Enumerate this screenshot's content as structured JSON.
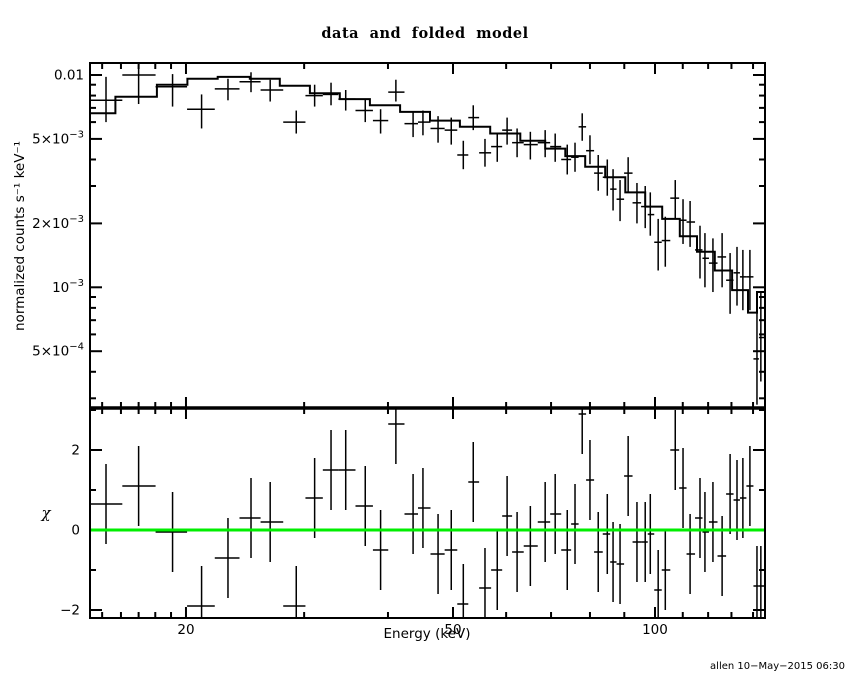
{
  "title": "data and folded model",
  "xlabel": "Energy (keV)",
  "ylabel_top": "normalized counts s⁻¹ keV⁻¹",
  "ylabel_bottom": "χ",
  "timestamp": "allen 10−May−2015 06:30",
  "colors": {
    "foreground": "#000000",
    "background": "#ffffff",
    "model_line": "#000000",
    "data_line": "#000000",
    "zero_line_green": "#00ee00"
  },
  "chart_data": {
    "type": "scatter",
    "subtype": "xspec_spectrum_with_residuals",
    "title": "data and folded model",
    "x_axis": {
      "label": "Energy (keV)",
      "scale": "log",
      "range": [
        14.4,
        145.8
      ],
      "major_ticks": [
        {
          "value": 20,
          "label": "20"
        },
        {
          "value": 50,
          "label": "50"
        },
        {
          "value": 100,
          "label": "100"
        }
      ],
      "minor_ticks": [
        15,
        16,
        17,
        18,
        19,
        30,
        40,
        60,
        70,
        80,
        90,
        110,
        120,
        130,
        140
      ],
      "grid": false
    },
    "top_panel": {
      "ylabel": "normalized counts s⁻¹ keV⁻¹",
      "scale": "log",
      "ylim": [
        0.000273,
        0.0114
      ],
      "tick_labels": [
        {
          "value": 0.01,
          "label": "0.01"
        },
        {
          "value": 0.005,
          "label": "5×10^−3"
        },
        {
          "value": 0.002,
          "label": "2×10^−3"
        },
        {
          "value": 0.001,
          "label": "10^−3"
        },
        {
          "value": 0.0005,
          "label": "5×10^−4"
        }
      ],
      "minor_ticks": [
        0.009,
        0.008,
        0.007,
        0.006,
        0.004,
        0.003,
        0.0009,
        0.0008,
        0.0007,
        0.0006,
        0.0004,
        0.0003
      ],
      "model": {
        "legend": "folded model (stepped histogram)",
        "bin_edges_keV": [
          14.4,
          15.7,
          18.1,
          20.1,
          22.3,
          24.9,
          27.6,
          30.6,
          33.9,
          37.6,
          41.7,
          46.2,
          51.2,
          56.8,
          63.0,
          68.6,
          73.5,
          78.7,
          84.3,
          90.3,
          96.7,
          102.5,
          108.9,
          115.5,
          122.8,
          130.3,
          137.6,
          141.9,
          145.8
        ],
        "values": [
          0.0066,
          0.0079,
          0.009,
          0.0096,
          0.0098,
          0.0096,
          0.0089,
          0.0082,
          0.0077,
          0.0072,
          0.0067,
          0.0061,
          0.0057,
          0.0053,
          0.0049,
          0.0045,
          0.00415,
          0.0037,
          0.0033,
          0.0028,
          0.0024,
          0.0021,
          0.00174,
          0.00147,
          0.0012,
          0.00097,
          0.00076,
          0.00095
        ]
      }
    },
    "bottom_panel": {
      "ylabel": "χ",
      "scale": "linear",
      "ylim": [
        -2.2,
        3.05
      ],
      "tick_labels": [
        {
          "value": 2,
          "label": "2"
        },
        {
          "value": 0,
          "label": "0"
        },
        {
          "value": -2,
          "label": "−2"
        }
      ],
      "minor_ticks": [
        -1,
        1,
        3
      ],
      "zero_line": {
        "value": 0,
        "color": "#00ee00"
      },
      "chi_err": 1.0
    },
    "points": {
      "columns": [
        "energy_keV",
        "rate",
        "rate_err_lo",
        "rate_err_hi",
        "chi"
      ],
      "rows": [
        [
          15.2,
          0.0076,
          0.006,
          0.0098,
          0.65
        ],
        [
          17.0,
          0.01,
          0.0073,
          0.0111,
          1.1
        ],
        [
          19.1,
          0.0088,
          0.0071,
          0.0101,
          -0.05
        ],
        [
          21.1,
          0.0069,
          0.0056,
          0.0081,
          -1.9
        ],
        [
          23.1,
          0.0086,
          0.0076,
          0.0096,
          -0.7
        ],
        [
          25.0,
          0.0093,
          0.0083,
          0.0103,
          0.3
        ],
        [
          26.7,
          0.0085,
          0.0075,
          0.0095,
          0.2
        ],
        [
          29.2,
          0.006,
          0.0053,
          0.0068,
          -1.9
        ],
        [
          31.1,
          0.008,
          0.0071,
          0.009,
          0.8
        ],
        [
          32.9,
          0.0081,
          0.0072,
          0.0092,
          1.5
        ],
        [
          34.6,
          0.0077,
          0.0068,
          0.0085,
          1.5
        ],
        [
          37.0,
          0.0068,
          0.006,
          0.0077,
          0.6
        ],
        [
          39.0,
          0.0061,
          0.0053,
          0.0069,
          -0.5
        ],
        [
          41.1,
          0.0083,
          0.0075,
          0.0095,
          2.65
        ],
        [
          43.6,
          0.0059,
          0.0051,
          0.0067,
          0.4
        ],
        [
          45.1,
          0.006,
          0.0052,
          0.0068,
          0.55
        ],
        [
          47.5,
          0.0056,
          0.0048,
          0.0064,
          -0.6
        ],
        [
          49.7,
          0.0055,
          0.0047,
          0.0063,
          -0.5
        ],
        [
          51.8,
          0.0042,
          0.0036,
          0.0049,
          -1.85
        ],
        [
          53.6,
          0.0063,
          0.0055,
          0.0072,
          1.2
        ],
        [
          55.8,
          0.0043,
          0.0037,
          0.005,
          -1.45
        ],
        [
          58.2,
          0.0046,
          0.0039,
          0.0053,
          -1.0
        ],
        [
          60.2,
          0.0055,
          0.0047,
          0.0063,
          0.35
        ],
        [
          62.3,
          0.0048,
          0.0041,
          0.0056,
          -0.55
        ],
        [
          65.2,
          0.0047,
          0.004,
          0.0054,
          -0.4
        ],
        [
          68.6,
          0.0048,
          0.0041,
          0.0055,
          0.2
        ],
        [
          71.0,
          0.0046,
          0.0039,
          0.0053,
          0.4
        ],
        [
          74.0,
          0.004,
          0.0034,
          0.0047,
          -0.5
        ],
        [
          76.0,
          0.0041,
          0.0035,
          0.0048,
          0.15
        ],
        [
          77.9,
          0.0057,
          0.0049,
          0.0066,
          2.9
        ],
        [
          80.0,
          0.0044,
          0.0038,
          0.0052,
          1.25
        ],
        [
          82.3,
          0.00345,
          0.00285,
          0.0042,
          -0.55
        ],
        [
          84.9,
          0.0033,
          0.0027,
          0.004,
          -0.1
        ],
        [
          86.6,
          0.0029,
          0.0023,
          0.0036,
          -0.8
        ],
        [
          88.7,
          0.0026,
          0.00205,
          0.0032,
          -0.85
        ],
        [
          91.2,
          0.00345,
          0.0028,
          0.0041,
          1.35
        ],
        [
          94.0,
          0.0025,
          0.002,
          0.0031,
          -0.3
        ],
        [
          96.7,
          0.0024,
          0.0019,
          0.003,
          -0.3
        ],
        [
          98.4,
          0.0022,
          0.00175,
          0.0028,
          -0.1
        ],
        [
          101.1,
          0.00163,
          0.0012,
          0.0021,
          -1.5
        ],
        [
          103.6,
          0.00166,
          0.00125,
          0.00215,
          -1.0
        ],
        [
          107.2,
          0.00263,
          0.0021,
          0.0032,
          2.0
        ],
        [
          110.1,
          0.00207,
          0.0016,
          0.0026,
          1.05
        ],
        [
          112.8,
          0.00203,
          0.00155,
          0.00255,
          -0.6
        ],
        [
          116.7,
          0.0015,
          0.0011,
          0.00195,
          0.3
        ],
        [
          118.7,
          0.00137,
          0.001,
          0.0018,
          -0.05
        ],
        [
          122.0,
          0.0013,
          0.00095,
          0.0017,
          0.2
        ],
        [
          125.9,
          0.00139,
          0.001,
          0.0018,
          -0.65
        ],
        [
          129.4,
          0.00108,
          0.00075,
          0.00145,
          0.9
        ],
        [
          132.5,
          0.00117,
          0.00082,
          0.00155,
          0.75
        ],
        [
          135.2,
          0.00112,
          0.00078,
          0.0015,
          0.8
        ],
        [
          138.5,
          0.00112,
          0.00078,
          0.0015,
          1.1
        ],
        [
          141.9,
          0.00046,
          0.00028,
          0.0008,
          -1.4
        ],
        [
          143.8,
          0.00058,
          0.00036,
          0.00095,
          -1.4
        ]
      ]
    }
  }
}
